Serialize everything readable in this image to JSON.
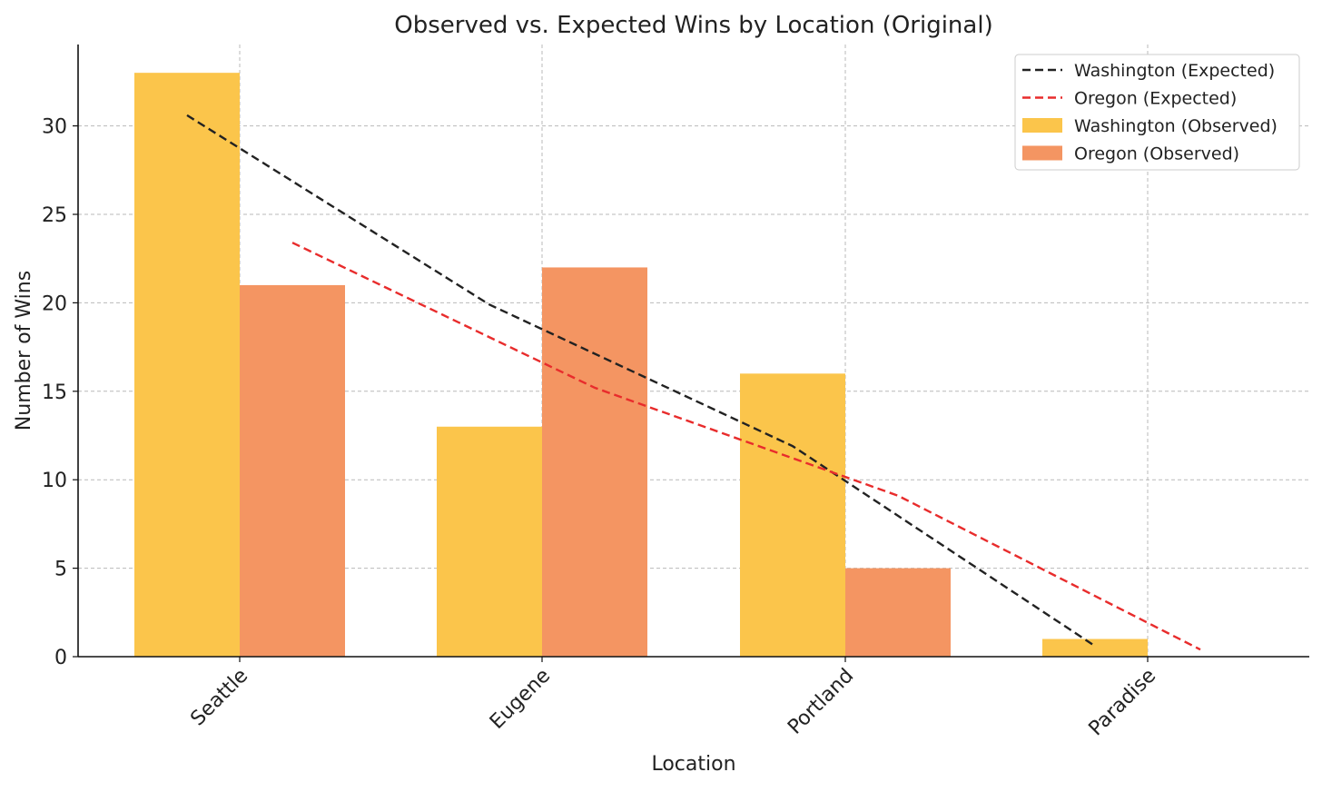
{
  "chart_data": {
    "type": "bar",
    "title": "Observed vs. Expected Wins by Location (Original)",
    "xlabel": "Location",
    "ylabel": "Number of Wins",
    "categories": [
      "Seattle",
      "Eugene",
      "Portland",
      "Paradise"
    ],
    "ylim": [
      0,
      34.6
    ],
    "yticks": [
      0,
      5,
      10,
      15,
      20,
      25,
      30
    ],
    "grid": true,
    "legend_position": "top-right",
    "bar_series": [
      {
        "name": "Washington (Observed)",
        "color": "#fbc54b",
        "values": [
          33,
          13,
          16,
          1
        ]
      },
      {
        "name": "Oregon (Observed)",
        "color": "#f49562",
        "values": [
          21,
          22,
          5,
          0
        ]
      }
    ],
    "line_series": [
      {
        "name": "Washington (Expected)",
        "color": "#222222",
        "style": "dashed",
        "values": [
          30.6,
          19.9,
          11.9,
          0.6
        ]
      },
      {
        "name": "Oregon (Expected)",
        "color": "#e82c2c",
        "style": "dashed",
        "values": [
          23.4,
          15.2,
          9.1,
          0.4
        ]
      }
    ]
  }
}
